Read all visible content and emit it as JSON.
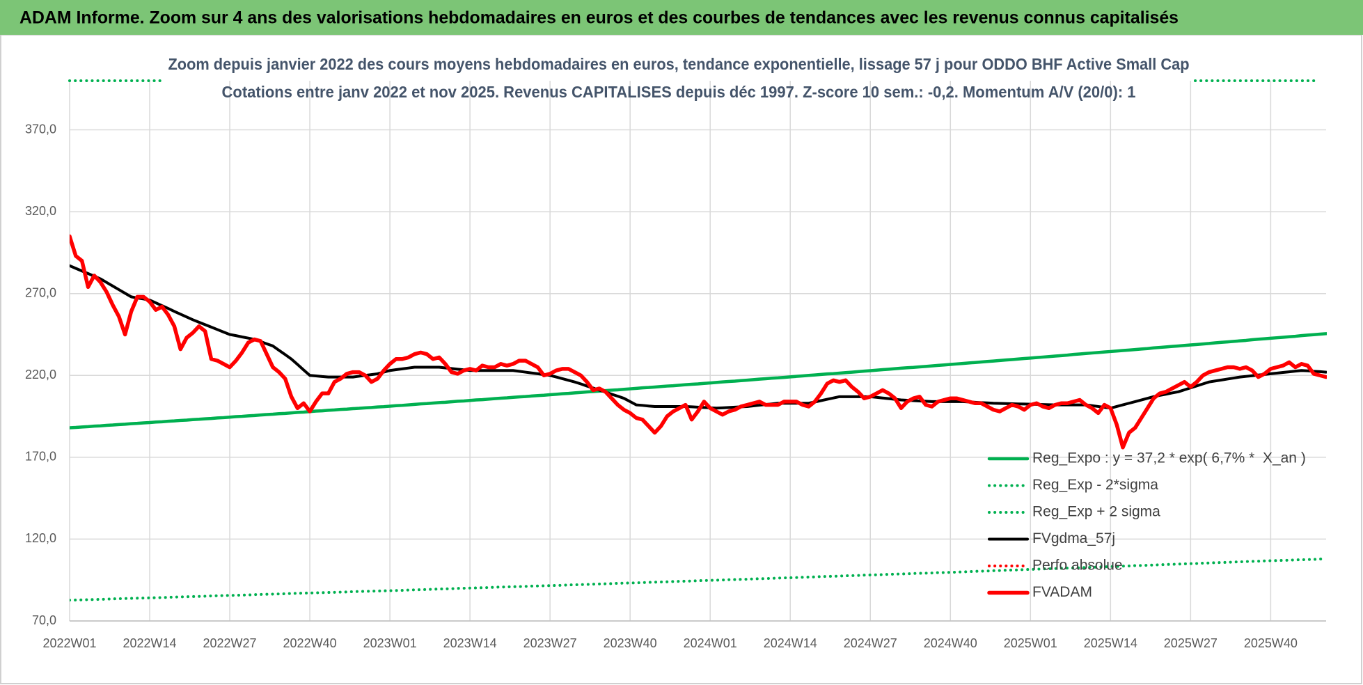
{
  "header": {
    "title": "ADAM Informe. Zoom sur 4 ans des valorisations hebdomadaires en euros et des courbes de tendances avec les revenus connus capitalisés"
  },
  "chart_data": {
    "type": "line",
    "title": "Zoom depuis janvier 2022 des cours moyens hebdomadaires en euros, tendance exponentielle, lissage 57 j pour ODDO BHF Active Small Cap",
    "subtitle": "Cotations entre janv 2022 et nov 2025. Revenus CAPITALISES depuis déc 1997. Z-score 10 sem.: -0,2. Momentum A/V (20/0): 1",
    "categories": [
      "2022W01",
      null,
      null,
      null,
      null,
      null,
      null,
      null,
      null,
      null,
      null,
      null,
      null,
      "2022W14",
      null,
      null,
      null,
      null,
      null,
      null,
      null,
      null,
      null,
      null,
      null,
      null,
      "2022W27",
      null,
      null,
      null,
      null,
      null,
      null,
      null,
      null,
      null,
      null,
      null,
      null,
      "2022W40",
      null,
      null,
      null,
      null,
      null,
      null,
      null,
      null,
      null,
      null,
      null,
      null,
      "2023W01",
      null,
      null,
      null,
      null,
      null,
      null,
      null,
      null,
      null,
      null,
      null,
      null,
      "2023W14",
      null,
      null,
      null,
      null,
      null,
      null,
      null,
      null,
      null,
      null,
      null,
      null,
      "2023W27",
      null,
      null,
      null,
      null,
      null,
      null,
      null,
      null,
      null,
      null,
      null,
      null,
      "2023W40",
      null,
      null,
      null,
      null,
      null,
      null,
      null,
      null,
      null,
      null,
      null,
      null,
      "2024W01",
      null,
      null,
      null,
      null,
      null,
      null,
      null,
      null,
      null,
      null,
      null,
      null,
      "2024W14",
      null,
      null,
      null,
      null,
      null,
      null,
      null,
      null,
      null,
      null,
      null,
      null,
      "2024W27",
      null,
      null,
      null,
      null,
      null,
      null,
      null,
      null,
      null,
      null,
      null,
      null,
      "2024W40",
      null,
      null,
      null,
      null,
      null,
      null,
      null,
      null,
      null,
      null,
      null,
      null,
      "2025W01",
      null,
      null,
      null,
      null,
      null,
      null,
      null,
      null,
      null,
      null,
      null,
      null,
      "2025W14",
      null,
      null,
      null,
      null,
      null,
      null,
      null,
      null,
      null,
      null,
      null,
      null,
      "2025W27",
      null,
      null,
      null,
      null,
      null,
      null,
      null,
      null,
      null,
      null,
      null,
      null,
      "2025W40",
      null,
      null,
      null,
      null,
      null,
      null,
      null,
      null,
      null
    ],
    "ylim": [
      70,
      400
    ],
    "yticks": [
      {
        "value": 70,
        "label": "70,0"
      },
      {
        "value": 120,
        "label": "120,0"
      },
      {
        "value": 170,
        "label": "170,0"
      },
      {
        "value": 220,
        "label": "220,0"
      },
      {
        "value": 270,
        "label": "270,0"
      },
      {
        "value": 320,
        "label": "320,0"
      },
      {
        "value": 370,
        "label": "370,0"
      }
    ],
    "grid": true,
    "legend": "lower right",
    "series": [
      {
        "name": "Reg_Expo : y = 37,2 * exp( 6,7% *  X_an )",
        "color": "#00b050",
        "style": "solid",
        "width": 4.5,
        "values": [
          188.0,
          188.2,
          188.5,
          188.7,
          189.0,
          189.2,
          189.5,
          189.7,
          190.0,
          190.2,
          190.5,
          190.7,
          191.0,
          191.2,
          191.5,
          191.7,
          192.0,
          192.2,
          192.5,
          192.7,
          193.0,
          193.2,
          193.5,
          193.7,
          194.0,
          194.2,
          194.5,
          194.8,
          195.0,
          195.3,
          195.5,
          195.8,
          196.1,
          196.3,
          196.6,
          196.8,
          197.1,
          197.4,
          197.6,
          197.9,
          198.2,
          198.4,
          198.7,
          198.9,
          199.2,
          199.4,
          199.7,
          199.9,
          200.2,
          200.4,
          200.7,
          200.9,
          201.2,
          201.5,
          201.7,
          202.0,
          202.3,
          202.6,
          202.8,
          203.1,
          203.4,
          203.6,
          203.9,
          204.2,
          204.4,
          204.7,
          205.0,
          205.2,
          205.5,
          205.8,
          206.1,
          206.3,
          206.6,
          206.9,
          207.1,
          207.4,
          207.7,
          207.9,
          208.2,
          208.5,
          208.8,
          209.0,
          209.3,
          209.6,
          209.9,
          210.1,
          210.4,
          210.7,
          211.0,
          211.2,
          211.5,
          211.8,
          212.1,
          212.4,
          212.6,
          212.9,
          213.2,
          213.5,
          213.7,
          214.0,
          214.3,
          214.6,
          214.8,
          215.1,
          215.4,
          215.7,
          216.0,
          216.3,
          216.5,
          216.8,
          217.1,
          217.4,
          217.7,
          218.0,
          218.3,
          218.5,
          218.8,
          219.1,
          219.4,
          219.7,
          220.0,
          220.3,
          220.6,
          220.9,
          221.1,
          221.4,
          221.7,
          222.0,
          222.3,
          222.6,
          222.9,
          223.2,
          223.5,
          223.8,
          224.1,
          224.4,
          224.7,
          224.9,
          225.2,
          225.5,
          225.8,
          226.1,
          226.4,
          226.7,
          227.0,
          227.3,
          227.6,
          227.9,
          228.2,
          228.5,
          228.8,
          229.1,
          229.4,
          229.7,
          230.0,
          230.3,
          230.6,
          230.9,
          231.2,
          231.5,
          231.8,
          232.1,
          232.4,
          232.8,
          233.1,
          233.4,
          233.7,
          234.0,
          234.3,
          234.6,
          234.9,
          235.2,
          235.5,
          235.8,
          236.1,
          236.4,
          236.8,
          237.1,
          237.4,
          237.7,
          238.0,
          238.3,
          238.6,
          238.9,
          239.2,
          239.5,
          239.9,
          240.2,
          240.5,
          240.8,
          241.1,
          241.4,
          241.8,
          242.1,
          242.4,
          242.7,
          243.0,
          243.3,
          243.6,
          243.9,
          244.3,
          244.6,
          244.9,
          245.2,
          245.5
        ]
      },
      {
        "name": "Reg_Exp - 2*sigma",
        "color": "#00b050",
        "style": "dotted",
        "width": 4,
        "values": [
          82.7,
          82.8,
          82.9,
          83.0,
          83.1,
          83.2,
          83.3,
          83.5,
          83.6,
          83.7,
          83.8,
          83.9,
          84.0,
          84.1,
          84.2,
          84.3,
          84.4,
          84.6,
          84.7,
          84.8,
          84.9,
          85.0,
          85.1,
          85.3,
          85.4,
          85.5,
          85.6,
          85.7,
          85.8,
          85.9,
          86.1,
          86.2,
          86.3,
          86.4,
          86.5,
          86.6,
          86.8,
          86.9,
          87.0,
          87.1,
          87.2,
          87.3,
          87.4,
          87.5,
          87.6,
          87.7,
          87.9,
          88.0,
          88.1,
          88.2,
          88.3,
          88.4,
          88.5,
          88.6,
          88.7,
          88.9,
          89.0,
          89.1,
          89.2,
          89.4,
          89.5,
          89.6,
          89.7,
          89.9,
          90.0,
          90.1,
          90.2,
          90.3,
          90.4,
          90.6,
          90.7,
          90.8,
          90.9,
          91.0,
          91.1,
          91.3,
          91.4,
          91.5,
          91.6,
          91.7,
          91.8,
          92.0,
          92.1,
          92.2,
          92.3,
          92.5,
          92.6,
          92.7,
          92.8,
          93.0,
          93.1,
          93.2,
          93.3,
          93.4,
          93.6,
          93.7,
          93.8,
          93.9,
          94.1,
          94.2,
          94.3,
          94.4,
          94.6,
          94.7,
          94.8,
          94.9,
          95.0,
          95.2,
          95.3,
          95.4,
          95.5,
          95.7,
          95.8,
          95.9,
          96.0,
          96.2,
          96.3,
          96.4,
          96.5,
          96.7,
          96.8,
          96.9,
          97.1,
          97.2,
          97.3,
          97.4,
          97.6,
          97.7,
          97.8,
          98.0,
          98.1,
          98.2,
          98.3,
          98.5,
          98.6,
          98.7,
          98.8,
          99.0,
          99.1,
          99.2,
          99.3,
          99.5,
          99.6,
          99.7,
          99.8,
          100.0,
          100.1,
          100.3,
          100.4,
          100.5,
          100.7,
          100.8,
          101.0,
          101.1,
          101.2,
          101.4,
          101.5,
          101.6,
          101.8,
          101.9,
          102.0,
          102.2,
          102.3,
          102.4,
          102.5,
          102.7,
          102.8,
          102.9,
          103.1,
          103.2,
          103.3,
          103.5,
          103.6,
          103.8,
          103.9,
          104.0,
          104.2,
          104.3,
          104.5,
          104.6,
          104.7,
          104.9,
          105.0,
          105.1,
          105.3,
          105.4,
          105.6,
          105.7,
          105.8,
          106.0,
          106.1,
          106.3,
          106.4,
          106.5,
          106.7,
          106.8,
          106.9,
          107.0,
          107.1,
          107.3,
          107.4,
          107.5,
          107.6,
          107.8,
          108.0
        ]
      },
      {
        "name": "Reg_Exp + 2 sigma",
        "color": "#00b050",
        "style": "dotted",
        "width": 4
      },
      {
        "name": "FVgdma_57j",
        "color": "#000000",
        "style": "solid",
        "width": 4,
        "values": [
          287,
          285.4,
          283.8,
          282.2,
          280.6,
          279,
          276.8,
          274.6,
          272.4,
          270.2,
          268,
          267.3,
          266.7,
          266,
          264.3,
          262.6,
          260.9,
          259.1,
          257.4,
          255.7,
          254,
          252.5,
          251,
          249.5,
          248,
          246.5,
          245,
          244.3,
          243.5,
          242.8,
          242,
          240.7,
          239.3,
          238,
          235.3,
          232.7,
          230,
          226.7,
          223.3,
          220,
          219.7,
          219.3,
          219,
          219,
          219,
          219,
          219,
          219.5,
          220,
          220.5,
          221,
          222,
          223,
          223.5,
          224,
          224.5,
          225,
          225,
          225,
          225,
          225,
          224.6,
          224.2,
          223.8,
          223.4,
          223,
          223,
          223,
          223,
          223,
          223,
          223,
          223,
          222.5,
          222,
          221.5,
          221,
          220.5,
          220,
          219,
          218,
          217,
          216,
          214.8,
          213.5,
          212.3,
          211,
          209.8,
          208.5,
          207.3,
          206,
          204,
          202,
          201.7,
          201.3,
          201,
          201,
          201,
          201,
          201,
          201,
          200.8,
          200.6,
          200.4,
          200.2,
          200,
          200.2,
          200.4,
          200.6,
          200.8,
          201,
          201.4,
          201.8,
          202.2,
          202.6,
          203,
          203,
          203,
          203,
          203,
          203,
          203.8,
          204.6,
          205.4,
          206.2,
          207,
          207,
          207,
          207,
          207,
          207,
          206.6,
          206.2,
          205.8,
          205.4,
          205,
          204.8,
          204.6,
          204.4,
          204.2,
          204,
          204,
          204,
          204,
          204,
          204,
          203.8,
          203.6,
          203.4,
          203.2,
          203,
          202.9,
          202.8,
          202.7,
          202.6,
          202.5,
          202.4,
          202.3,
          202.2,
          202.1,
          202,
          202,
          202,
          202,
          202,
          202,
          201.5,
          201,
          200.5,
          200,
          201,
          202,
          203,
          204,
          205,
          206,
          207,
          207.8,
          208.5,
          209.3,
          210,
          211.2,
          212.4,
          213.6,
          214.8,
          216,
          216.6,
          217.2,
          217.8,
          218.4,
          219,
          219.4,
          219.8,
          220.2,
          220.6,
          221,
          221.4,
          221.8,
          222.2,
          222.6,
          223,
          222.8,
          222.5,
          222.3,
          222
        ]
      },
      {
        "name": "Perfo absolue",
        "color": "#ff0000",
        "style": "dotted",
        "width": 4
      },
      {
        "name": "FVADAM",
        "color": "#ff0000",
        "style": "solid",
        "width": 5.5,
        "values": [
          305,
          293,
          290,
          274,
          281,
          277,
          271,
          263,
          256,
          245,
          259,
          268,
          268,
          265,
          260,
          262,
          257,
          250,
          236,
          243,
          246,
          250,
          247,
          230,
          229,
          227,
          225,
          229,
          234,
          240,
          242,
          241,
          233,
          225,
          222,
          218,
          207,
          200,
          203,
          198,
          204,
          209,
          209,
          216,
          218,
          221,
          222,
          222,
          220,
          216,
          218,
          223,
          227,
          230,
          230,
          231,
          233,
          234,
          233,
          230,
          231,
          227,
          222,
          221,
          223,
          224,
          223,
          226,
          225,
          225,
          227,
          226,
          227,
          229,
          229,
          227,
          225,
          220,
          221,
          223,
          224,
          224,
          222,
          220,
          216,
          211,
          212,
          210,
          206,
          202,
          199,
          197,
          194,
          193,
          189,
          185,
          189,
          195,
          198,
          200,
          202,
          193,
          198,
          204,
          200,
          198,
          196,
          198,
          199,
          201,
          202,
          203,
          204,
          202,
          202,
          202,
          204,
          204,
          204,
          202,
          201,
          204,
          209,
          215,
          217,
          216,
          217,
          213,
          210,
          206,
          207,
          209,
          211,
          209,
          206,
          200,
          204,
          206,
          207,
          202,
          201,
          204,
          205,
          206,
          206,
          205,
          204,
          203,
          203,
          201,
          199,
          198,
          200,
          202,
          201,
          199,
          202,
          203,
          201,
          200,
          202,
          203,
          203,
          204,
          205,
          202,
          200,
          197,
          202,
          200,
          190,
          176,
          185,
          188,
          194,
          200,
          206,
          209,
          210,
          212,
          214,
          216,
          213,
          216,
          220,
          222,
          223,
          224,
          225,
          225,
          224,
          225,
          223,
          219,
          221,
          224,
          225,
          226,
          228,
          225,
          227,
          226,
          221,
          220,
          219
        ]
      }
    ]
  }
}
